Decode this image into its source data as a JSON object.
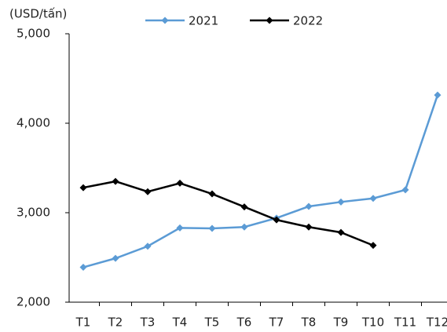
{
  "chart_data": {
    "type": "line",
    "y_label": "(USD/tấn)",
    "categories": [
      "T1",
      "T2",
      "T3",
      "T4",
      "T5",
      "T6",
      "T7",
      "T8",
      "T9",
      "T10",
      "T11",
      "T12"
    ],
    "series": [
      {
        "name": "2021",
        "color": "#5b9bd5",
        "values": [
          2390,
          2490,
          2625,
          2830,
          2825,
          2840,
          2940,
          3070,
          3120,
          3160,
          3255,
          4315
        ]
      },
      {
        "name": "2022",
        "color": "#000000",
        "values": [
          3280,
          3350,
          3235,
          3330,
          3210,
          3065,
          2920,
          2840,
          2780,
          2635,
          null,
          null
        ]
      }
    ],
    "ylim": [
      2000,
      5000
    ],
    "yticks": [
      {
        "value": 2000,
        "label": "2,000"
      },
      {
        "value": 3000,
        "label": "3,000"
      },
      {
        "value": 4000,
        "label": "4,000"
      },
      {
        "value": 5000,
        "label": "5,000"
      }
    ],
    "legend": "top"
  }
}
